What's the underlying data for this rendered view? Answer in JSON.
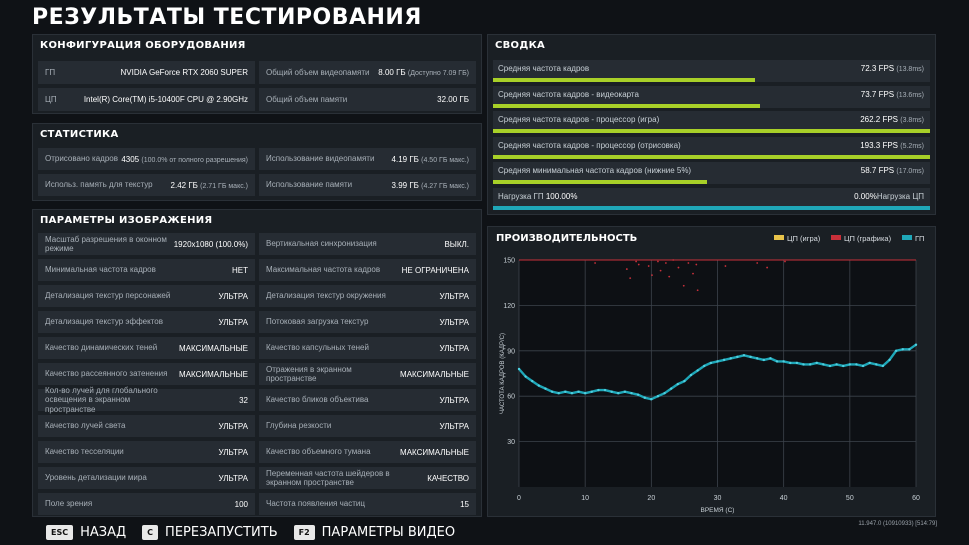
{
  "title": "РЕЗУЛЬТАТЫ ТЕСТИРОВАНИЯ",
  "hardware": {
    "heading": "КОНФИГУРАЦИЯ ОБОРУДОВАНИЯ",
    "rows": [
      {
        "k": "ГП",
        "v": "NVIDIA GeForce RTX 2060 SUPER",
        "x": ""
      },
      {
        "k": "Общий объем видеопамяти",
        "v": "8.00 ГБ",
        "x": "(Доступно 7.09 ГБ)"
      },
      {
        "k": "ЦП",
        "v": "Intel(R) Core(TM) i5-10400F CPU @ 2.90GHz",
        "x": ""
      },
      {
        "k": "Общий объем памяти",
        "v": "32.00 ГБ",
        "x": ""
      }
    ]
  },
  "stats": {
    "heading": "СТАТИСТИКА",
    "rows": [
      {
        "k": "Отрисовано кадров",
        "v": "4305",
        "x": "(100.0% от полного разрешения)"
      },
      {
        "k": "Использование видеопамяти",
        "v": "4.19 ГБ",
        "x": "(4.50 ГБ макс.)"
      },
      {
        "k": "Использ. память для текстур",
        "v": "2.42 ГБ",
        "x": "(2.71 ГБ макс.)"
      },
      {
        "k": "Использование памяти",
        "v": "3.99 ГБ",
        "x": "(4.27 ГБ макс.)"
      }
    ]
  },
  "image": {
    "heading": "ПАРАМЕТРЫ ИЗОБРАЖЕНИЯ",
    "rows": [
      {
        "k": "Масштаб разрешения в оконном режиме",
        "v": "1920x1080 (100.0%)"
      },
      {
        "k": "Вертикальная синхронизация",
        "v": "ВЫКЛ."
      },
      {
        "k": "Минимальная частота кадров",
        "v": "НЕТ"
      },
      {
        "k": "Максимальная частота кадров",
        "v": "НЕ ОГРАНИЧЕНА"
      },
      {
        "k": "Детализация текстур персонажей",
        "v": "УЛЬТРА"
      },
      {
        "k": "Детализация текстур окружения",
        "v": "УЛЬТРА"
      },
      {
        "k": "Детализация текстур эффектов",
        "v": "УЛЬТРА"
      },
      {
        "k": "Потоковая загрузка текстур",
        "v": "УЛЬТРА"
      },
      {
        "k": "Качество динамических теней",
        "v": "МАКСИМАЛЬНЫЕ"
      },
      {
        "k": "Качество капсульных теней",
        "v": "УЛЬТРА"
      },
      {
        "k": "Качество рассеянного затенения",
        "v": "МАКСИМАЛЬНЫЕ"
      },
      {
        "k": "Отражения в экранном пространстве",
        "v": "МАКСИМАЛЬНЫЕ"
      },
      {
        "k": "Кол-во лучей для глобального освещения в экранном пространстве",
        "v": "32"
      },
      {
        "k": "Качество бликов объектива",
        "v": "УЛЬТРА"
      },
      {
        "k": "Качество лучей света",
        "v": "УЛЬТРА"
      },
      {
        "k": "Глубина резкости",
        "v": "УЛЬТРА"
      },
      {
        "k": "Качество тесселяции",
        "v": "УЛЬТРА"
      },
      {
        "k": "Качество объемного тумана",
        "v": "МАКСИМАЛЬНЫЕ"
      },
      {
        "k": "Уровень детализации мира",
        "v": "УЛЬТРА"
      },
      {
        "k": "Переменная частота шейдеров в экранном пространстве",
        "v": "КАЧЕСТВО"
      },
      {
        "k": "Поле зрения",
        "v": "100"
      },
      {
        "k": "Частота появления частиц",
        "v": "15"
      }
    ]
  },
  "summary": {
    "heading": "СВОДКА",
    "rows": [
      {
        "k": "Средняя частота кадров",
        "v": "72.3 FPS",
        "x": "(13.8ms)",
        "fill": 0.6
      },
      {
        "k": "Средняя частота кадров - видеокарта",
        "v": "73.7 FPS",
        "x": "(13.6ms)",
        "fill": 0.61
      },
      {
        "k": "Средняя частота кадров - процессор (игра)",
        "v": "262.2 FPS",
        "x": "(3.8ms)",
        "fill": 1.0
      },
      {
        "k": "Средняя частота кадров - процессор (отрисовка)",
        "v": "193.3 FPS",
        "x": "(5.2ms)",
        "fill": 1.0
      },
      {
        "k": "Средняя минимальная частота кадров (нижние 5%)",
        "v": "58.7 FPS",
        "x": "(17.0ms)",
        "fill": 0.49
      }
    ],
    "load": {
      "left_label": "Нагрузка ГП",
      "left_value": "100.00%",
      "right_value": "0.00%",
      "right_label": "Нагрузка ЦП",
      "fill": 1.0
    }
  },
  "colors": {
    "accent": "#a8d028",
    "gpu": "#1fa7b8",
    "cpu_game": "#e8c34a",
    "cpu_render": "#c8303a"
  },
  "chart_data": {
    "type": "scatter",
    "title": "ПРОИЗВОДИТЕЛЬНОСТЬ",
    "xlabel": "ВРЕМЯ (С)",
    "ylabel": "ЧАСТОТА КАДРОВ (КАДР/С)",
    "xlim": [
      0,
      60
    ],
    "ylim": [
      0,
      150
    ],
    "xticks": [
      0,
      10,
      20,
      30,
      40,
      50,
      60
    ],
    "yticks": [
      30,
      60,
      90,
      120,
      150
    ],
    "legend": [
      "ЦП (игра)",
      "ЦП (графика)",
      "ГП"
    ],
    "grid": true,
    "gpu_series": [
      [
        0,
        78
      ],
      [
        1,
        73
      ],
      [
        2,
        70
      ],
      [
        3,
        67
      ],
      [
        4,
        65
      ],
      [
        5,
        63
      ],
      [
        6,
        62
      ],
      [
        7,
        63
      ],
      [
        8,
        62
      ],
      [
        9,
        63
      ],
      [
        10,
        62
      ],
      [
        11,
        63
      ],
      [
        12,
        64
      ],
      [
        13,
        64
      ],
      [
        14,
        63
      ],
      [
        15,
        62
      ],
      [
        16,
        63
      ],
      [
        17,
        62
      ],
      [
        18,
        61
      ],
      [
        19,
        59
      ],
      [
        20,
        58
      ],
      [
        21,
        60
      ],
      [
        22,
        62
      ],
      [
        23,
        65
      ],
      [
        24,
        68
      ],
      [
        25,
        70
      ],
      [
        26,
        74
      ],
      [
        27,
        77
      ],
      [
        28,
        80
      ],
      [
        29,
        82
      ],
      [
        30,
        83
      ],
      [
        31,
        84
      ],
      [
        32,
        85
      ],
      [
        33,
        86
      ],
      [
        34,
        87
      ],
      [
        35,
        86
      ],
      [
        36,
        85
      ],
      [
        37,
        84
      ],
      [
        38,
        85
      ],
      [
        39,
        83
      ],
      [
        40,
        83
      ],
      [
        41,
        82
      ],
      [
        42,
        82
      ],
      [
        43,
        81
      ],
      [
        44,
        81
      ],
      [
        45,
        82
      ],
      [
        46,
        81
      ],
      [
        47,
        80
      ],
      [
        48,
        81
      ],
      [
        49,
        80
      ],
      [
        50,
        81
      ],
      [
        51,
        81
      ],
      [
        52,
        80
      ],
      [
        53,
        82
      ],
      [
        54,
        81
      ],
      [
        55,
        80
      ],
      [
        56,
        84
      ],
      [
        57,
        90
      ],
      [
        58,
        91
      ],
      [
        59,
        91
      ],
      [
        60,
        94
      ]
    ],
    "cpu_render_points": [
      [
        11.5,
        148
      ],
      [
        16.3,
        144
      ],
      [
        16.8,
        138
      ],
      [
        17.7,
        149
      ],
      [
        18.1,
        147
      ],
      [
        19.6,
        146
      ],
      [
        20.1,
        140
      ],
      [
        21.0,
        149
      ],
      [
        21.4,
        143
      ],
      [
        22.2,
        148
      ],
      [
        22.7,
        139
      ],
      [
        23.3,
        150
      ],
      [
        24.1,
        145
      ],
      [
        24.9,
        133
      ],
      [
        25.6,
        148
      ],
      [
        26.3,
        141
      ],
      [
        26.8,
        147
      ],
      [
        27.0,
        130
      ],
      [
        31.2,
        146
      ],
      [
        36.0,
        148
      ],
      [
        37.5,
        145
      ],
      [
        40.2,
        149
      ]
    ],
    "cpu_game_cap": 150,
    "cpu_render_cap": 150
  },
  "footer": {
    "back_key": "ESC",
    "back_label": "НАЗАД",
    "restart_key": "C",
    "restart_label": "ПЕРЕЗАПУСТИТЬ",
    "video_key": "F2",
    "video_label": "ПАРАМЕТРЫ ВИДЕО",
    "version": "11.947.0 (10910933) [514:79]"
  }
}
